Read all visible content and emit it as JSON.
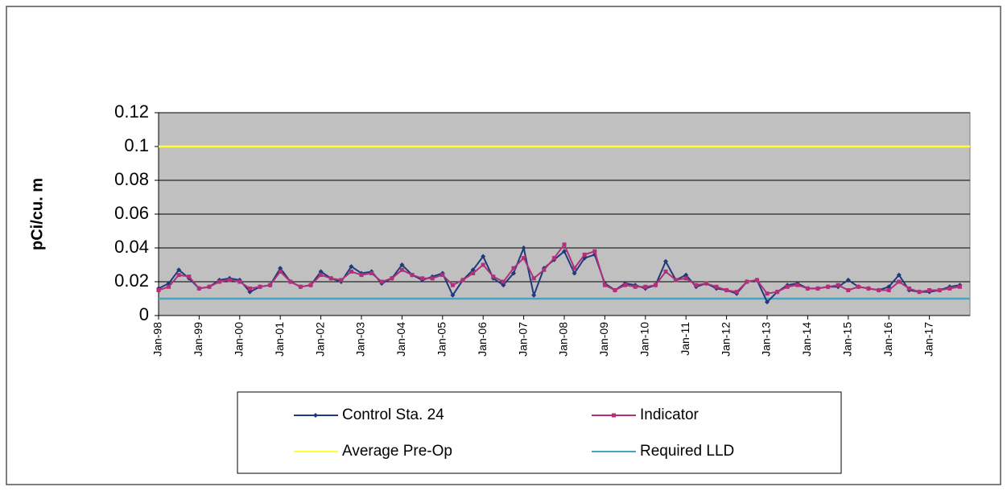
{
  "chart_data": {
    "type": "line",
    "y_label": "pCi/cu. m",
    "x": [
      1998,
      1998.25,
      1998.5,
      1998.75,
      1999,
      1999.25,
      1999.5,
      1999.75,
      2000,
      2000.25,
      2000.5,
      2000.75,
      2001,
      2001.25,
      2001.5,
      2001.75,
      2002,
      2002.25,
      2002.5,
      2002.75,
      2003,
      2003.25,
      2003.5,
      2003.75,
      2004,
      2004.25,
      2004.5,
      2004.75,
      2005,
      2005.25,
      2005.5,
      2005.75,
      2006,
      2006.25,
      2006.5,
      2006.75,
      2007,
      2007.25,
      2007.5,
      2007.75,
      2008,
      2008.25,
      2008.5,
      2008.75,
      2009,
      2009.25,
      2009.5,
      2009.75,
      2010,
      2010.25,
      2010.5,
      2010.75,
      2011,
      2011.25,
      2011.5,
      2011.75,
      2012,
      2012.25,
      2012.5,
      2012.75,
      2013,
      2013.25,
      2013.5,
      2013.75,
      2014,
      2014.25,
      2014.5,
      2014.75,
      2015,
      2015.25,
      2015.5,
      2015.75,
      2016,
      2016.25,
      2016.5,
      2016.75,
      2017,
      2017.25,
      2017.5,
      2017.75
    ],
    "series": [
      {
        "name": "Control Sta. 24",
        "color": "#1f3a7a",
        "marker": "diamond",
        "values": [
          0.016,
          0.019,
          0.027,
          0.022,
          0.016,
          0.017,
          0.021,
          0.022,
          0.021,
          0.014,
          0.017,
          0.018,
          0.028,
          0.02,
          0.017,
          0.018,
          0.026,
          0.022,
          0.02,
          0.029,
          0.025,
          0.026,
          0.019,
          0.022,
          0.03,
          0.024,
          0.021,
          0.023,
          0.025,
          0.012,
          0.021,
          0.027,
          0.035,
          0.022,
          0.018,
          0.025,
          0.04,
          0.012,
          0.028,
          0.033,
          0.038,
          0.025,
          0.034,
          0.036,
          0.019,
          0.015,
          0.019,
          0.018,
          0.016,
          0.018,
          0.032,
          0.021,
          0.024,
          0.017,
          0.019,
          0.016,
          0.015,
          0.013,
          0.02,
          0.021,
          0.008,
          0.014,
          0.018,
          0.019,
          0.016,
          0.016,
          0.017,
          0.017,
          0.021,
          0.017,
          0.016,
          0.015,
          0.017,
          0.024,
          0.015,
          0.014,
          0.014,
          0.015,
          0.017,
          0.018
        ]
      },
      {
        "name": "Indicator",
        "color": "#b0307a",
        "marker": "square",
        "values": [
          0.015,
          0.017,
          0.024,
          0.023,
          0.016,
          0.017,
          0.02,
          0.021,
          0.02,
          0.016,
          0.017,
          0.018,
          0.026,
          0.02,
          0.017,
          0.018,
          0.024,
          0.022,
          0.021,
          0.026,
          0.024,
          0.025,
          0.02,
          0.022,
          0.027,
          0.024,
          0.022,
          0.022,
          0.024,
          0.018,
          0.021,
          0.025,
          0.03,
          0.023,
          0.02,
          0.028,
          0.034,
          0.022,
          0.027,
          0.034,
          0.042,
          0.028,
          0.036,
          0.038,
          0.018,
          0.015,
          0.018,
          0.017,
          0.017,
          0.018,
          0.026,
          0.021,
          0.022,
          0.018,
          0.019,
          0.017,
          0.015,
          0.014,
          0.02,
          0.021,
          0.013,
          0.014,
          0.017,
          0.018,
          0.016,
          0.016,
          0.017,
          0.018,
          0.015,
          0.017,
          0.016,
          0.015,
          0.015,
          0.02,
          0.016,
          0.014,
          0.015,
          0.015,
          0.016,
          0.017
        ]
      },
      {
        "name": "Average Pre-Op",
        "color": "#ffff33",
        "x": [
          1998,
          2018
        ],
        "values": [
          0.1,
          0.1
        ]
      },
      {
        "name": "Required LLD",
        "color": "#4ba3c3",
        "x": [
          1998,
          2018
        ],
        "values": [
          0.01,
          0.01
        ]
      }
    ],
    "xlim": [
      1998,
      2018
    ],
    "xticks": [
      {
        "value": 1998,
        "label": "Jan-98"
      },
      {
        "value": 1999,
        "label": "Jan-99"
      },
      {
        "value": 2000,
        "label": "Jan-00"
      },
      {
        "value": 2001,
        "label": "Jan-01"
      },
      {
        "value": 2002,
        "label": "Jan-02"
      },
      {
        "value": 2003,
        "label": "Jan-03"
      },
      {
        "value": 2004,
        "label": "Jan-04"
      },
      {
        "value": 2005,
        "label": "Jan-05"
      },
      {
        "value": 2006,
        "label": "Jan-06"
      },
      {
        "value": 2007,
        "label": "Jan-07"
      },
      {
        "value": 2008,
        "label": "Jan-08"
      },
      {
        "value": 2009,
        "label": "Jan-09"
      },
      {
        "value": 2010,
        "label": "Jan-10"
      },
      {
        "value": 2011,
        "label": "Jan-11"
      },
      {
        "value": 2012,
        "label": "Jan-12"
      },
      {
        "value": 2013,
        "label": "Jan-13"
      },
      {
        "value": 2014,
        "label": "Jan-14"
      },
      {
        "value": 2015,
        "label": "Jan-15"
      },
      {
        "value": 2016,
        "label": "Jan-16"
      },
      {
        "value": 2017,
        "label": "Jan-17"
      }
    ],
    "ylim": [
      0,
      0.12
    ],
    "yticks": [
      0,
      0.02,
      0.04,
      0.06,
      0.08,
      0.1,
      0.12
    ],
    "grid": true,
    "plot_background": "#c0c0c0"
  }
}
